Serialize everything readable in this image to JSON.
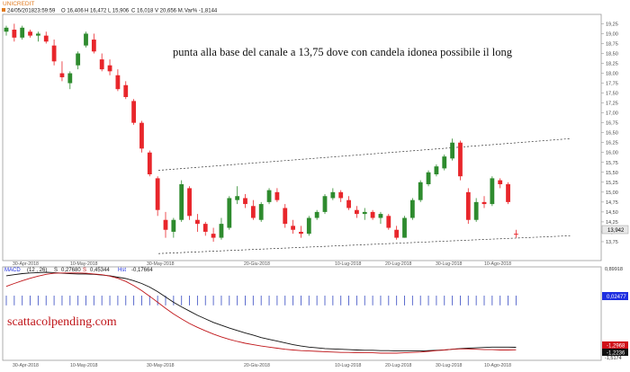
{
  "symbol": "UNICREDIT",
  "info_bar": {
    "date": "24/05/2018",
    "time": "23:59:59",
    "open": "O 16,406",
    "high": "H 16,472",
    "low": "L 15,906",
    "close": "C 16,018",
    "volume": "V 20,656 M.",
    "var": "Var% -1,8144"
  },
  "annotation": "punta alla base del canale a 13,75 dove con candela idonea possibile il long",
  "watermark": "scattacolpending.com",
  "colors": {
    "up": "#2E8B2E",
    "down": "#E8262B",
    "macd_line": "#111111",
    "signal_line": "#C0161A",
    "histogram": "#4A5CC8",
    "badge_last": "#E8E8E8",
    "badge_macd": "#1F2FE0",
    "badge_neg": "#D01018"
  },
  "price_axis": {
    "ticks": [
      "19,25",
      "19,00",
      "18,75",
      "18,50",
      "18,25",
      "18,00",
      "17,75",
      "17,50",
      "17,25",
      "17,00",
      "16,75",
      "16,50",
      "16,25",
      "16,00",
      "15,75",
      "15,50",
      "15,25",
      "15,00",
      "14,75",
      "14,50",
      "14,25",
      "14,00",
      "13,75"
    ],
    "last_label": "13,942"
  },
  "x_axis": {
    "upper_labels": [
      "30-Apr-2018",
      "10-May-2018",
      "30-May-2018",
      "20-Giu-2018",
      "10-Lug-2018",
      "20-Lug-2018",
      "30-Lug-2018",
      "10-Ago-2018"
    ],
    "lower_labels": [
      "30-Apr-2018",
      "10-May-2018",
      "30-May-2018",
      "20-Giu-2018",
      "10-Lug-2018",
      "20-Lug-2018",
      "30-Lug-2018",
      "10-Ago-2018"
    ]
  },
  "macd_header": {
    "name": "MACD",
    "params": "(12 , 26)",
    "s_label": "S",
    "macd_value": "0,27680",
    "signal_label": "S",
    "signal_value": "0,45344",
    "hist_label": "Hst",
    "hist_value": "-0,17664"
  },
  "macd_axis": {
    "top_label": "0,89918",
    "badge_value": "0,02477",
    "neg_badge_1": "-1,2968",
    "neg_badge_2": "-1,2236",
    "bottom_label": "-1,5174"
  },
  "chart_data": {
    "type": "candlestick",
    "ylim": [
      13.5,
      19.35
    ],
    "candles": [
      {
        "o": 19.05,
        "h": 19.2,
        "l": 18.95,
        "c": 19.15
      },
      {
        "o": 19.1,
        "h": 19.25,
        "l": 18.8,
        "c": 18.9
      },
      {
        "o": 18.9,
        "h": 19.2,
        "l": 18.85,
        "c": 19.15
      },
      {
        "o": 19.05,
        "h": 19.1,
        "l": 18.9,
        "c": 18.95
      },
      {
        "o": 18.95,
        "h": 19.05,
        "l": 18.8,
        "c": 19.0
      },
      {
        "o": 18.95,
        "h": 19.05,
        "l": 18.75,
        "c": 18.8
      },
      {
        "o": 18.7,
        "h": 18.85,
        "l": 18.2,
        "c": 18.3
      },
      {
        "o": 18.0,
        "h": 18.3,
        "l": 17.8,
        "c": 17.9
      },
      {
        "o": 17.75,
        "h": 18.05,
        "l": 17.6,
        "c": 18.0
      },
      {
        "o": 18.2,
        "h": 18.55,
        "l": 18.1,
        "c": 18.5
      },
      {
        "o": 18.7,
        "h": 19.05,
        "l": 18.65,
        "c": 19.0
      },
      {
        "o": 18.85,
        "h": 19.0,
        "l": 18.5,
        "c": 18.55
      },
      {
        "o": 18.35,
        "h": 18.5,
        "l": 18.05,
        "c": 18.1
      },
      {
        "o": 18.2,
        "h": 18.35,
        "l": 17.95,
        "c": 18.05
      },
      {
        "o": 17.95,
        "h": 18.1,
        "l": 17.55,
        "c": 17.6
      },
      {
        "o": 17.7,
        "h": 17.8,
        "l": 17.35,
        "c": 17.4
      },
      {
        "o": 17.3,
        "h": 17.35,
        "l": 16.7,
        "c": 16.75
      },
      {
        "o": 16.75,
        "h": 16.8,
        "l": 16.0,
        "c": 16.1
      },
      {
        "o": 16.0,
        "h": 16.05,
        "l": 15.4,
        "c": 15.45
      },
      {
        "o": 15.35,
        "h": 15.4,
        "l": 14.4,
        "c": 14.55
      },
      {
        "o": 14.3,
        "h": 14.5,
        "l": 13.85,
        "c": 14.05
      },
      {
        "o": 14.0,
        "h": 14.35,
        "l": 13.85,
        "c": 14.3
      },
      {
        "o": 14.3,
        "h": 15.3,
        "l": 14.25,
        "c": 15.2
      },
      {
        "o": 15.1,
        "h": 15.15,
        "l": 14.3,
        "c": 14.4
      },
      {
        "o": 14.3,
        "h": 14.45,
        "l": 14.0,
        "c": 14.2
      },
      {
        "o": 14.2,
        "h": 14.25,
        "l": 13.9,
        "c": 14.0
      },
      {
        "o": 13.95,
        "h": 14.1,
        "l": 13.75,
        "c": 13.85
      },
      {
        "o": 13.85,
        "h": 14.35,
        "l": 13.8,
        "c": 14.2
      },
      {
        "o": 14.1,
        "h": 14.9,
        "l": 14.05,
        "c": 14.85
      },
      {
        "o": 14.8,
        "h": 15.15,
        "l": 14.7,
        "c": 14.9
      },
      {
        "o": 14.85,
        "h": 14.95,
        "l": 14.6,
        "c": 14.7
      },
      {
        "o": 14.65,
        "h": 14.8,
        "l": 14.3,
        "c": 14.35
      },
      {
        "o": 14.3,
        "h": 14.75,
        "l": 14.25,
        "c": 14.7
      },
      {
        "o": 14.75,
        "h": 15.1,
        "l": 14.7,
        "c": 15.05
      },
      {
        "o": 15.0,
        "h": 15.1,
        "l": 14.75,
        "c": 14.8
      },
      {
        "o": 14.6,
        "h": 14.7,
        "l": 14.1,
        "c": 14.2
      },
      {
        "o": 14.15,
        "h": 14.3,
        "l": 13.95,
        "c": 14.05
      },
      {
        "o": 14.0,
        "h": 14.15,
        "l": 13.85,
        "c": 13.95
      },
      {
        "o": 13.95,
        "h": 14.4,
        "l": 13.9,
        "c": 14.35
      },
      {
        "o": 14.35,
        "h": 14.55,
        "l": 14.3,
        "c": 14.5
      },
      {
        "o": 14.5,
        "h": 14.95,
        "l": 14.45,
        "c": 14.9
      },
      {
        "o": 14.85,
        "h": 15.1,
        "l": 14.8,
        "c": 15.0
      },
      {
        "o": 15.0,
        "h": 15.05,
        "l": 14.75,
        "c": 14.85
      },
      {
        "o": 14.8,
        "h": 14.9,
        "l": 14.55,
        "c": 14.6
      },
      {
        "o": 14.55,
        "h": 14.65,
        "l": 14.35,
        "c": 14.45
      },
      {
        "o": 14.45,
        "h": 14.6,
        "l": 14.3,
        "c": 14.5
      },
      {
        "o": 14.5,
        "h": 14.55,
        "l": 14.3,
        "c": 14.35
      },
      {
        "o": 14.35,
        "h": 14.5,
        "l": 14.2,
        "c": 14.45
      },
      {
        "o": 14.4,
        "h": 14.45,
        "l": 14.05,
        "c": 14.1
      },
      {
        "o": 14.05,
        "h": 14.15,
        "l": 13.8,
        "c": 13.85
      },
      {
        "o": 13.85,
        "h": 14.4,
        "l": 13.85,
        "c": 14.35
      },
      {
        "o": 14.35,
        "h": 14.85,
        "l": 14.3,
        "c": 14.8
      },
      {
        "o": 14.8,
        "h": 15.3,
        "l": 14.75,
        "c": 15.25
      },
      {
        "o": 15.2,
        "h": 15.55,
        "l": 15.15,
        "c": 15.5
      },
      {
        "o": 15.45,
        "h": 15.7,
        "l": 15.4,
        "c": 15.65
      },
      {
        "o": 15.6,
        "h": 15.95,
        "l": 15.55,
        "c": 15.9
      },
      {
        "o": 15.85,
        "h": 16.35,
        "l": 15.8,
        "c": 16.25
      },
      {
        "o": 16.25,
        "h": 16.3,
        "l": 15.3,
        "c": 15.4
      },
      {
        "o": 15.0,
        "h": 15.1,
        "l": 14.2,
        "c": 14.3
      },
      {
        "o": 14.3,
        "h": 14.85,
        "l": 14.25,
        "c": 14.75
      },
      {
        "o": 14.75,
        "h": 14.9,
        "l": 14.6,
        "c": 14.7
      },
      {
        "o": 14.7,
        "h": 15.4,
        "l": 14.65,
        "c": 15.35
      },
      {
        "o": 15.3,
        "h": 15.35,
        "l": 15.1,
        "c": 15.2
      },
      {
        "o": 15.2,
        "h": 15.25,
        "l": 14.7,
        "c": 14.75
      },
      {
        "o": 13.95,
        "h": 14.05,
        "l": 13.85,
        "c": 13.942
      }
    ],
    "channel": {
      "upper": {
        "start": 15.55,
        "end": 16.35
      },
      "lower": {
        "start": 13.45,
        "end": 13.9
      }
    },
    "macd": {
      "ylim": [
        -1.5174,
        0.89918
      ],
      "macd_line": [
        0.8,
        0.83,
        0.86,
        0.88,
        0.89,
        0.9,
        0.89,
        0.87,
        0.86,
        0.85,
        0.85,
        0.84,
        0.82,
        0.8,
        0.76,
        0.72,
        0.66,
        0.58,
        0.48,
        0.35,
        0.2,
        0.05,
        -0.08,
        -0.2,
        -0.32,
        -0.42,
        -0.52,
        -0.6,
        -0.68,
        -0.75,
        -0.82,
        -0.88,
        -0.95,
        -1.0,
        -1.05,
        -1.1,
        -1.15,
        -1.19,
        -1.22,
        -1.24,
        -1.26,
        -1.27,
        -1.28,
        -1.29,
        -1.3,
        -1.31,
        -1.31,
        -1.32,
        -1.32,
        -1.33,
        -1.33,
        -1.33,
        -1.33,
        -1.32,
        -1.31,
        -1.3,
        -1.28,
        -1.26,
        -1.25,
        -1.24,
        -1.23,
        -1.22,
        -1.22,
        -1.22,
        -1.2236
      ],
      "signal_line": [
        0.5,
        0.58,
        0.66,
        0.73,
        0.79,
        0.84,
        0.87,
        0.88,
        0.88,
        0.88,
        0.87,
        0.85,
        0.83,
        0.79,
        0.73,
        0.64,
        0.52,
        0.38,
        0.22,
        0.05,
        -0.12,
        -0.28,
        -0.42,
        -0.55,
        -0.66,
        -0.76,
        -0.85,
        -0.93,
        -1.0,
        -1.06,
        -1.11,
        -1.15,
        -1.19,
        -1.22,
        -1.25,
        -1.28,
        -1.3,
        -1.32,
        -1.33,
        -1.34,
        -1.35,
        -1.36,
        -1.37,
        -1.37,
        -1.38,
        -1.38,
        -1.38,
        -1.39,
        -1.39,
        -1.39,
        -1.38,
        -1.37,
        -1.36,
        -1.34,
        -1.32,
        -1.3,
        -1.28,
        -1.27,
        -1.27,
        -1.28,
        -1.29,
        -1.29,
        -1.3,
        -1.3,
        -1.2968
      ],
      "histogram_bar": 0.3
    }
  }
}
